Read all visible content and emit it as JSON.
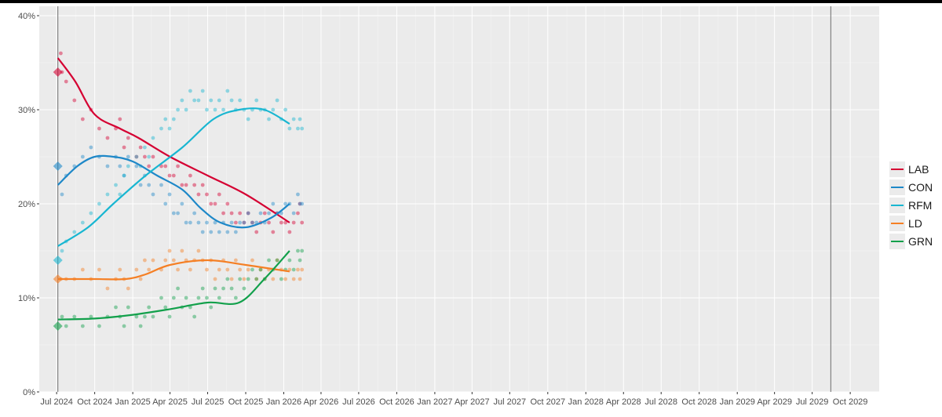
{
  "chart_data": {
    "type": "scatter",
    "title": "",
    "xlabel": "",
    "ylabel": "",
    "x_range": [
      "2024-05-20",
      "2029-12-10"
    ],
    "ylim": [
      0,
      41
    ],
    "y_ticks": [
      0,
      10,
      20,
      30,
      40
    ],
    "y_tick_labels": [
      "0%",
      "10%",
      "20%",
      "30%",
      "40%"
    ],
    "x_ticks": [
      "2024-07-01",
      "2024-10-01",
      "2025-01-01",
      "2025-04-01",
      "2025-07-01",
      "2025-10-01",
      "2026-01-01",
      "2026-04-01",
      "2026-07-01",
      "2026-10-01",
      "2027-01-01",
      "2027-04-01",
      "2027-07-01",
      "2027-10-01",
      "2028-01-01",
      "2028-04-01",
      "2028-07-01",
      "2028-10-01",
      "2029-01-01",
      "2029-04-01",
      "2029-07-01",
      "2029-10-01"
    ],
    "x_tick_labels": [
      "Jul 2024",
      "Oct 2024",
      "Jan 2025",
      "Apr 2025",
      "Jul 2025",
      "Oct 2025",
      "Jan 2026",
      "Apr 2026",
      "Jul 2026",
      "Oct 2026",
      "Jan 2027",
      "Apr 2027",
      "Jul 2027",
      "Oct 2027",
      "Jan 2028",
      "Apr 2028",
      "Jul 2028",
      "Oct 2028",
      "Jan 2029",
      "Apr 2029",
      "Jul 2029",
      "Oct 2029"
    ],
    "vertical_lines": [
      "2024-07-04",
      "2029-08-15"
    ],
    "grid": true,
    "legend_position": "right",
    "series": [
      {
        "name": "LAB",
        "color": "#d50032",
        "election_result": 34,
        "trend": [
          [
            "2024-07-04",
            35.5
          ],
          [
            "2024-08-15",
            33
          ],
          [
            "2024-10-01",
            29.5
          ],
          [
            "2024-12-01",
            28
          ],
          [
            "2025-01-15",
            27
          ],
          [
            "2025-04-01",
            25
          ],
          [
            "2025-07-01",
            23
          ],
          [
            "2025-10-01",
            21
          ],
          [
            "2026-01-15",
            18
          ]
        ]
      },
      {
        "name": "CON",
        "color": "#1e88c8",
        "election_result": 24,
        "trend": [
          [
            "2024-07-04",
            22
          ],
          [
            "2024-08-20",
            24
          ],
          [
            "2024-10-01",
            25
          ],
          [
            "2024-11-15",
            25
          ],
          [
            "2025-01-01",
            24.5
          ],
          [
            "2025-03-01",
            23
          ],
          [
            "2025-05-01",
            21.5
          ],
          [
            "2025-06-15",
            19.5
          ],
          [
            "2025-08-01",
            18
          ],
          [
            "2025-10-01",
            17.5
          ],
          [
            "2025-12-01",
            18.5
          ],
          [
            "2026-01-15",
            20
          ]
        ]
      },
      {
        "name": "RFM",
        "color": "#18b6d1",
        "election_result": 14,
        "trend": [
          [
            "2024-07-04",
            15.5
          ],
          [
            "2024-09-15",
            17.5
          ],
          [
            "2024-11-15",
            20
          ],
          [
            "2025-02-01",
            23
          ],
          [
            "2025-05-01",
            26
          ],
          [
            "2025-07-15",
            29
          ],
          [
            "2025-09-15",
            30
          ],
          [
            "2025-11-15",
            30
          ],
          [
            "2026-01-15",
            28.5
          ]
        ]
      },
      {
        "name": "LD",
        "color": "#f57f24",
        "election_result": 12,
        "trend": [
          [
            "2024-07-04",
            12
          ],
          [
            "2024-10-01",
            12
          ],
          [
            "2024-12-15",
            12
          ],
          [
            "2025-02-01",
            12.5
          ],
          [
            "2025-04-01",
            13.5
          ],
          [
            "2025-07-01",
            14
          ],
          [
            "2025-10-01",
            13.5
          ],
          [
            "2026-01-15",
            12.8
          ]
        ]
      },
      {
        "name": "GRN",
        "color": "#12a04b",
        "election_result": 7,
        "trend": [
          [
            "2024-07-04",
            7.7
          ],
          [
            "2024-10-01",
            7.8
          ],
          [
            "2025-01-01",
            8.2
          ],
          [
            "2025-04-01",
            8.8
          ],
          [
            "2025-07-01",
            9.5
          ],
          [
            "2025-09-15",
            9.5
          ],
          [
            "2025-11-15",
            12
          ],
          [
            "2026-01-15",
            15
          ]
        ]
      }
    ],
    "poll_points": {
      "LAB": [
        [
          7,
          36
        ],
        [
          10,
          34
        ],
        [
          20,
          33
        ],
        [
          40,
          31
        ],
        [
          60,
          29
        ],
        [
          80,
          30
        ],
        [
          100,
          28
        ],
        [
          120,
          27
        ],
        [
          140,
          28
        ],
        [
          150,
          29
        ],
        [
          160,
          26
        ],
        [
          170,
          27
        ],
        [
          190,
          25
        ],
        [
          200,
          26
        ],
        [
          210,
          25
        ],
        [
          220,
          24
        ],
        [
          230,
          25
        ],
        [
          250,
          24
        ],
        [
          260,
          24
        ],
        [
          270,
          23
        ],
        [
          280,
          23
        ],
        [
          290,
          24
        ],
        [
          300,
          22
        ],
        [
          310,
          22
        ],
        [
          320,
          23
        ],
        [
          330,
          22
        ],
        [
          340,
          21
        ],
        [
          350,
          22
        ],
        [
          360,
          21
        ],
        [
          370,
          20
        ],
        [
          380,
          20
        ],
        [
          390,
          21
        ],
        [
          400,
          19
        ],
        [
          410,
          20
        ],
        [
          420,
          19
        ],
        [
          430,
          18
        ],
        [
          440,
          19
        ],
        [
          450,
          18
        ],
        [
          460,
          19
        ],
        [
          470,
          18
        ],
        [
          480,
          17
        ],
        [
          490,
          18
        ],
        [
          500,
          19
        ],
        [
          510,
          18
        ],
        [
          520,
          17
        ],
        [
          530,
          19
        ],
        [
          540,
          18
        ],
        [
          550,
          18
        ],
        [
          560,
          17
        ],
        [
          570,
          18
        ],
        [
          580,
          19
        ],
        [
          585,
          20
        ],
        [
          590,
          18
        ]
      ],
      "CON": [
        [
          10,
          21
        ],
        [
          20,
          23
        ],
        [
          40,
          24
        ],
        [
          60,
          25
        ],
        [
          80,
          26
        ],
        [
          100,
          25
        ],
        [
          120,
          24
        ],
        [
          140,
          25
        ],
        [
          150,
          24
        ],
        [
          160,
          23
        ],
        [
          170,
          25
        ],
        [
          190,
          24
        ],
        [
          200,
          22
        ],
        [
          210,
          23
        ],
        [
          220,
          22
        ],
        [
          230,
          21
        ],
        [
          250,
          22
        ],
        [
          260,
          20
        ],
        [
          270,
          21
        ],
        [
          280,
          19
        ],
        [
          290,
          19
        ],
        [
          300,
          20
        ],
        [
          310,
          18
        ],
        [
          320,
          18
        ],
        [
          330,
          19
        ],
        [
          340,
          18
        ],
        [
          350,
          17
        ],
        [
          360,
          18
        ],
        [
          370,
          17
        ],
        [
          380,
          18
        ],
        [
          390,
          17
        ],
        [
          400,
          18
        ],
        [
          410,
          17
        ],
        [
          420,
          18
        ],
        [
          430,
          17
        ],
        [
          440,
          18
        ],
        [
          450,
          18
        ],
        [
          460,
          19
        ],
        [
          470,
          18
        ],
        [
          480,
          18
        ],
        [
          490,
          19
        ],
        [
          500,
          18
        ],
        [
          510,
          19
        ],
        [
          520,
          20
        ],
        [
          530,
          19
        ],
        [
          540,
          19
        ],
        [
          550,
          20
        ],
        [
          560,
          20
        ],
        [
          570,
          19
        ],
        [
          580,
          21
        ],
        [
          585,
          20
        ],
        [
          590,
          20
        ]
      ],
      "RFM": [
        [
          10,
          15
        ],
        [
          20,
          16
        ],
        [
          40,
          17
        ],
        [
          60,
          18
        ],
        [
          80,
          19
        ],
        [
          100,
          20
        ],
        [
          120,
          21
        ],
        [
          140,
          22
        ],
        [
          150,
          21
        ],
        [
          160,
          23
        ],
        [
          170,
          24
        ],
        [
          190,
          25
        ],
        [
          200,
          24
        ],
        [
          210,
          26
        ],
        [
          220,
          25
        ],
        [
          230,
          27
        ],
        [
          250,
          28
        ],
        [
          260,
          29
        ],
        [
          270,
          28
        ],
        [
          280,
          29
        ],
        [
          290,
          30
        ],
        [
          300,
          31
        ],
        [
          310,
          30
        ],
        [
          320,
          32
        ],
        [
          330,
          31
        ],
        [
          340,
          31
        ],
        [
          350,
          32
        ],
        [
          360,
          30
        ],
        [
          370,
          31
        ],
        [
          380,
          30
        ],
        [
          390,
          31
        ],
        [
          400,
          30
        ],
        [
          410,
          32
        ],
        [
          420,
          31
        ],
        [
          430,
          30
        ],
        [
          440,
          31
        ],
        [
          450,
          30
        ],
        [
          460,
          29
        ],
        [
          470,
          30
        ],
        [
          480,
          31
        ],
        [
          490,
          30
        ],
        [
          500,
          30
        ],
        [
          510,
          29
        ],
        [
          520,
          30
        ],
        [
          530,
          31
        ],
        [
          540,
          29
        ],
        [
          550,
          30
        ],
        [
          560,
          28
        ],
        [
          570,
          29
        ],
        [
          580,
          28
        ],
        [
          585,
          29
        ],
        [
          590,
          28
        ]
      ],
      "LD": [
        [
          7,
          12
        ],
        [
          20,
          12
        ],
        [
          40,
          12
        ],
        [
          60,
          13
        ],
        [
          80,
          12
        ],
        [
          100,
          13
        ],
        [
          120,
          11
        ],
        [
          140,
          12
        ],
        [
          150,
          13
        ],
        [
          160,
          12
        ],
        [
          170,
          11
        ],
        [
          190,
          13
        ],
        [
          200,
          12
        ],
        [
          210,
          14
        ],
        [
          220,
          13
        ],
        [
          230,
          14
        ],
        [
          250,
          13
        ],
        [
          260,
          14
        ],
        [
          270,
          15
        ],
        [
          280,
          14
        ],
        [
          290,
          13
        ],
        [
          300,
          15
        ],
        [
          310,
          14
        ],
        [
          320,
          13
        ],
        [
          330,
          14
        ],
        [
          340,
          15
        ],
        [
          350,
          14
        ],
        [
          360,
          13
        ],
        [
          370,
          14
        ],
        [
          380,
          12
        ],
        [
          390,
          13
        ],
        [
          400,
          14
        ],
        [
          410,
          13
        ],
        [
          420,
          12
        ],
        [
          430,
          14
        ],
        [
          440,
          13
        ],
        [
          450,
          12
        ],
        [
          460,
          13
        ],
        [
          470,
          14
        ],
        [
          480,
          12
        ],
        [
          490,
          13
        ],
        [
          500,
          12
        ],
        [
          510,
          13
        ],
        [
          520,
          12
        ],
        [
          530,
          14
        ],
        [
          540,
          13
        ],
        [
          550,
          12
        ],
        [
          560,
          13
        ],
        [
          570,
          12
        ],
        [
          580,
          13
        ],
        [
          585,
          12
        ],
        [
          590,
          13
        ]
      ],
      "GRN": [
        [
          10,
          8
        ],
        [
          20,
          7
        ],
        [
          40,
          8
        ],
        [
          60,
          7
        ],
        [
          80,
          8
        ],
        [
          100,
          7
        ],
        [
          120,
          8
        ],
        [
          140,
          9
        ],
        [
          150,
          8
        ],
        [
          160,
          7
        ],
        [
          170,
          9
        ],
        [
          190,
          8
        ],
        [
          200,
          7
        ],
        [
          210,
          8
        ],
        [
          220,
          9
        ],
        [
          230,
          8
        ],
        [
          250,
          10
        ],
        [
          260,
          9
        ],
        [
          270,
          8
        ],
        [
          280,
          10
        ],
        [
          290,
          11
        ],
        [
          300,
          9
        ],
        [
          310,
          10
        ],
        [
          320,
          9
        ],
        [
          330,
          8
        ],
        [
          340,
          10
        ],
        [
          350,
          11
        ],
        [
          360,
          10
        ],
        [
          370,
          9
        ],
        [
          380,
          11
        ],
        [
          390,
          10
        ],
        [
          400,
          11
        ],
        [
          410,
          12
        ],
        [
          420,
          11
        ],
        [
          430,
          10
        ],
        [
          440,
          12
        ],
        [
          450,
          11
        ],
        [
          460,
          12
        ],
        [
          470,
          13
        ],
        [
          480,
          12
        ],
        [
          490,
          13
        ],
        [
          500,
          12
        ],
        [
          510,
          14
        ],
        [
          520,
          13
        ],
        [
          530,
          14
        ],
        [
          540,
          12
        ],
        [
          550,
          13
        ],
        [
          560,
          14
        ],
        [
          570,
          13
        ],
        [
          580,
          15
        ],
        [
          585,
          14
        ],
        [
          590,
          15
        ]
      ]
    }
  }
}
